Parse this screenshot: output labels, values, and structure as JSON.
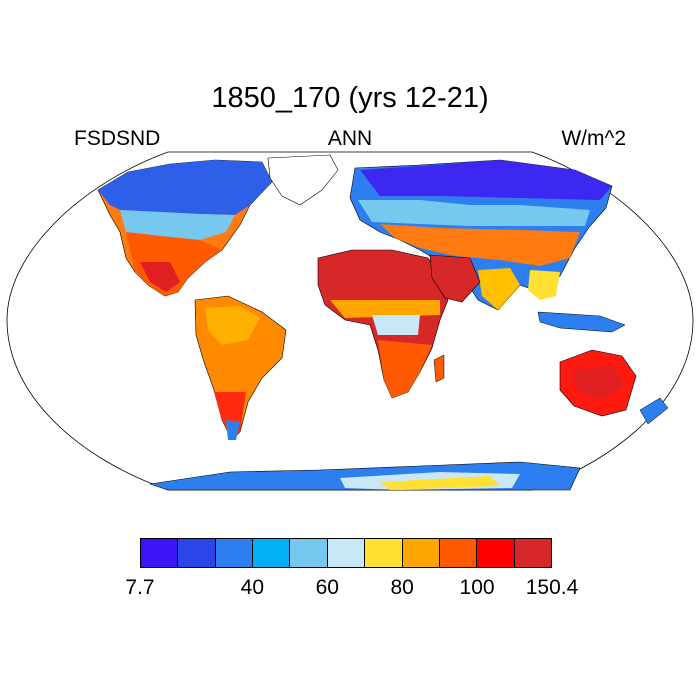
{
  "title": "1850_170 (yrs 12-21)",
  "left_label": "FSDSND",
  "center_label": "ANN",
  "right_label": "W/m^2",
  "colorbar": {
    "colors": [
      "#3c14f5",
      "#2a46e8",
      "#2d7ff0",
      "#04b0f5",
      "#76c8ee",
      "#c8e8f8",
      "#ffe033",
      "#ffa500",
      "#ff5a00",
      "#ff0000",
      "#d62828"
    ],
    "tick_labels": [
      "7.7",
      "40",
      "60",
      "80",
      "100",
      "150.4"
    ]
  }
}
